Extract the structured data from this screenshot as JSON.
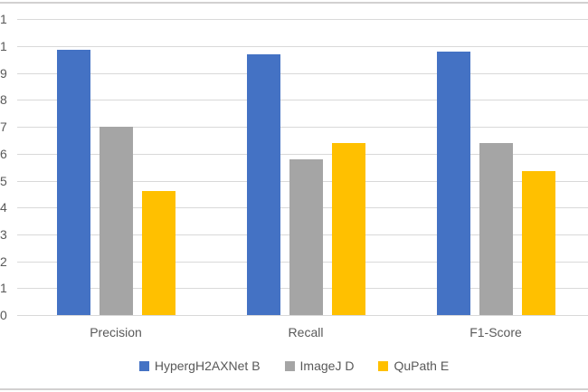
{
  "chart_data": {
    "type": "bar",
    "title": "",
    "xlabel": "",
    "ylabel": "",
    "categories": [
      "Precision",
      "Recall",
      "F1-Score"
    ],
    "series": [
      {
        "name": "HypergH2AXNet B",
        "color": "#4472C4",
        "values": [
          0.985,
          0.97,
          0.98
        ]
      },
      {
        "name": "ImageJ D",
        "color": "#A5A5A5",
        "values": [
          0.7,
          0.58,
          0.64
        ]
      },
      {
        "name": "QuPath E",
        "color": "#FFC000",
        "values": [
          0.46,
          0.64,
          0.535
        ]
      }
    ],
    "ylim": [
      0,
      1.1
    ],
    "ytick_step": 0.1,
    "ytick_labels_visible": [
      "1",
      "1",
      "9",
      "8",
      "7",
      "6",
      "5",
      "4",
      "3",
      "2",
      "1",
      "0"
    ],
    "grid": true,
    "legend_position": "bottom",
    "axis_text_color": "#595959",
    "gridline_color": "#D9D9D9"
  }
}
